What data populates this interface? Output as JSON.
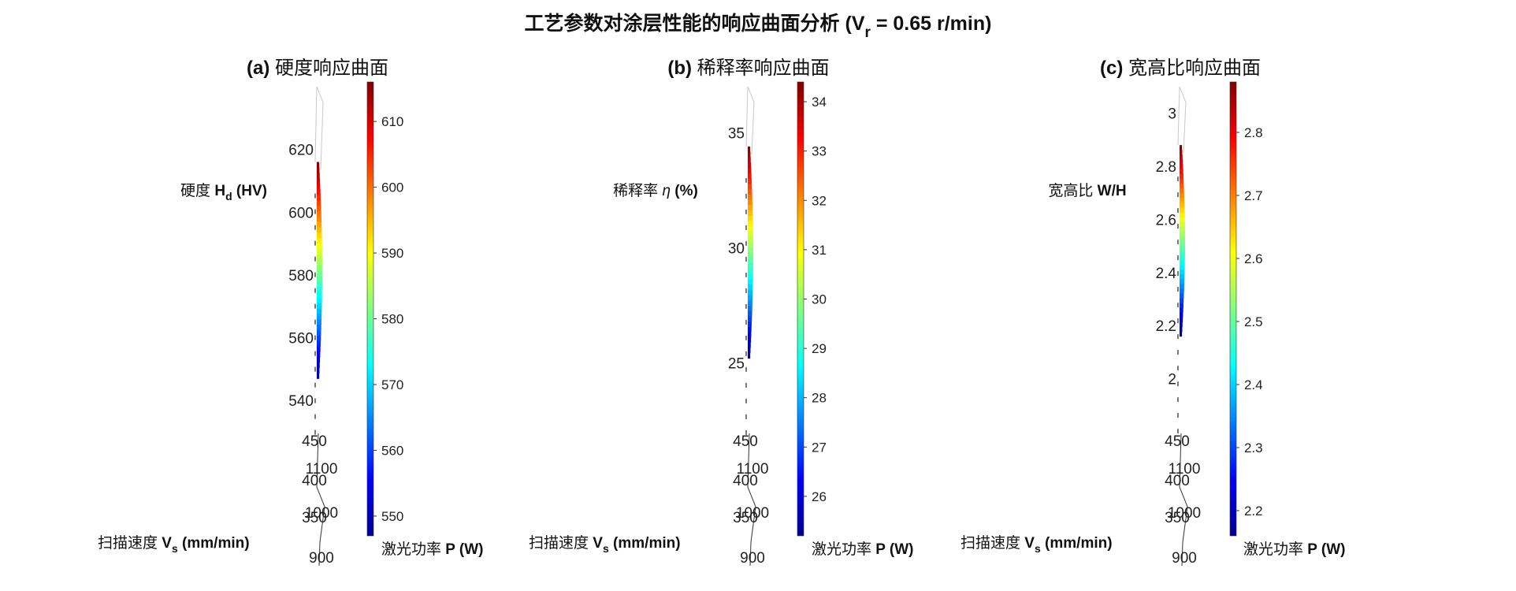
{
  "figure": {
    "title": "工艺参数对涂层性能的响应曲面分析 (V",
    "title_sub": "r",
    "title_tail": " = 0.65 r/min)"
  },
  "chart_data": [
    {
      "type": "surface",
      "panel_label": "(a)",
      "title": "硬度响应曲面",
      "zlabel": "硬度",
      "zlabel_sym": "H",
      "zlabel_sub": "d",
      "zlabel_unit": "(HV)",
      "xlabel": "扫描速度",
      "xlabel_sym": "V",
      "xlabel_sub": "s",
      "xlabel_unit": "(mm/min)",
      "ylabel": "激光功率",
      "ylabel_unit": "P (W)",
      "z_ticks": [
        "620",
        "600",
        "580",
        "560",
        "540"
      ],
      "z_range": [
        530,
        640
      ],
      "x_ticks": [
        "450",
        "400",
        "350"
      ],
      "y_ticks": [
        "1100",
        "1000",
        "900"
      ],
      "colorbar": {
        "range": [
          547,
          616
        ],
        "ticks": [
          "610",
          "600",
          "590",
          "580",
          "570",
          "560",
          "550"
        ]
      },
      "surface_range": [
        547,
        616
      ]
    },
    {
      "type": "surface",
      "panel_label": "(b)",
      "title": "稀释率响应曲面",
      "zlabel": "稀释率",
      "zlabel_sym": "η",
      "zlabel_sub": "",
      "zlabel_unit": "(%)",
      "xlabel": "扫描速度",
      "xlabel_sym": "V",
      "xlabel_sub": "s",
      "xlabel_unit": "(mm/min)",
      "ylabel": "激光功率",
      "ylabel_unit": "P (W)",
      "z_ticks": [
        "35",
        "30",
        "25"
      ],
      "z_range": [
        22,
        37
      ],
      "x_ticks": [
        "450",
        "400",
        "350"
      ],
      "y_ticks": [
        "1100",
        "1000",
        "900"
      ],
      "colorbar": {
        "range": [
          25.2,
          34.4
        ],
        "ticks": [
          "34",
          "33",
          "32",
          "31",
          "30",
          "29",
          "28",
          "27",
          "26"
        ]
      },
      "surface_range": [
        25.2,
        34.4
      ]
    },
    {
      "type": "surface",
      "panel_label": "(c)",
      "title": "宽高比响应曲面",
      "zlabel": "宽高比",
      "zlabel_sym": "W/H",
      "zlabel_sub": "",
      "zlabel_unit": "",
      "xlabel": "扫描速度",
      "xlabel_sym": "V",
      "xlabel_sub": "s",
      "xlabel_unit": "(mm/min)",
      "ylabel": "激光功率",
      "ylabel_unit": "P (W)",
      "z_ticks": [
        "3",
        "2.8",
        "2.6",
        "2.4",
        "2.2",
        "2"
      ],
      "z_range": [
        1.8,
        3.1
      ],
      "x_ticks": [
        "450",
        "400",
        "350"
      ],
      "y_ticks": [
        "1100",
        "1000",
        "900"
      ],
      "colorbar": {
        "range": [
          2.16,
          2.88
        ],
        "ticks": [
          "2.8",
          "2.7",
          "2.6",
          "2.5",
          "2.4",
          "2.3",
          "2.2"
        ]
      },
      "surface_range": [
        2.16,
        2.88
      ]
    }
  ]
}
